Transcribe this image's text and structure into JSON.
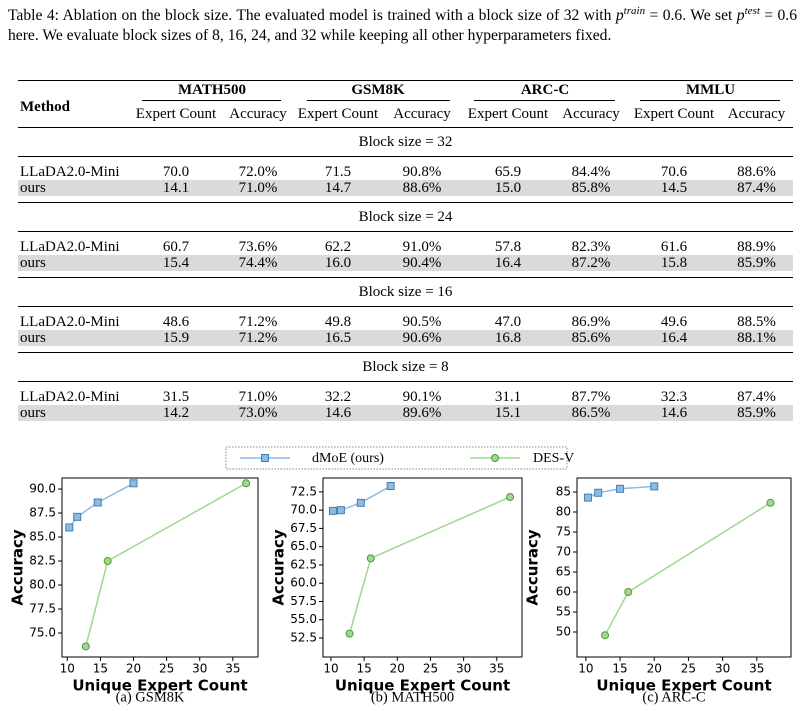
{
  "caption": [
    "Table 4: Ablation on the block size. The evaluated model is trained with a block size of 32 with",
    "p",
    "train",
    " = 0.6. We set ",
    "p",
    "test",
    " = 0.6 here. We evaluate block sizes of 8, 16, 24, and 32 while keeping all other hyperparameters fixed."
  ],
  "table": {
    "method_header": "Method",
    "groups": [
      "MATH500",
      "GSM8K",
      "ARC-C",
      "MMLU"
    ],
    "subheaders": [
      "Expert Count",
      "Accuracy"
    ],
    "sections": [
      {
        "title": "Block size = 32",
        "rows": [
          [
            "LLaDA2.0-Mini",
            "70.0",
            "72.0%",
            "71.5",
            "90.8%",
            "65.9",
            "84.4%",
            "70.6",
            "88.6%"
          ],
          [
            "ours",
            "14.1",
            "71.0%",
            "14.7",
            "88.6%",
            "15.0",
            "85.8%",
            "14.5",
            "87.4%"
          ]
        ]
      },
      {
        "title": "Block size = 24",
        "rows": [
          [
            "LLaDA2.0-Mini",
            "60.7",
            "73.6%",
            "62.2",
            "91.0%",
            "57.8",
            "82.3%",
            "61.6",
            "88.9%"
          ],
          [
            "ours",
            "15.4",
            "74.4%",
            "16.0",
            "90.4%",
            "16.4",
            "87.2%",
            "15.8",
            "85.9%"
          ]
        ]
      },
      {
        "title": "Block size = 16",
        "rows": [
          [
            "LLaDA2.0-Mini",
            "48.6",
            "71.2%",
            "49.8",
            "90.5%",
            "47.0",
            "86.9%",
            "49.6",
            "88.5%"
          ],
          [
            "ours",
            "15.9",
            "71.2%",
            "16.5",
            "90.6%",
            "16.8",
            "85.6%",
            "16.4",
            "88.1%"
          ]
        ]
      },
      {
        "title": "Block size = 8",
        "rows": [
          [
            "LLaDA2.0-Mini",
            "31.5",
            "71.0%",
            "32.2",
            "90.1%",
            "31.1",
            "87.7%",
            "32.3",
            "87.4%"
          ],
          [
            "ours",
            "14.2",
            "73.0%",
            "14.6",
            "89.6%",
            "15.1",
            "86.5%",
            "14.6",
            "85.9%"
          ]
        ]
      }
    ]
  },
  "chart_data": [
    {
      "type": "line",
      "subcaption": "(a) GSM8K",
      "xlabel": "Unique Expert Count",
      "ylabel": "Accuracy",
      "xlim": [
        9.2,
        38.8
      ],
      "xticks": [
        10,
        15,
        20,
        25,
        30,
        35
      ],
      "ylim": [
        72.5,
        91.15
      ],
      "yticks": [
        {
          "value": 75,
          "label": "75.0"
        },
        77.5,
        {
          "value": 80,
          "label": "80.0"
        },
        82.5,
        {
          "value": 85,
          "label": "85.0"
        },
        87.5,
        {
          "value": 90,
          "label": "90.0"
        }
      ],
      "series": [
        {
          "name": "dMoE (ours)",
          "color": "#8fbbe0",
          "marker": "square",
          "x": [
            10.3,
            11.5,
            14.6,
            20
          ],
          "values": [
            86.0,
            87.1,
            88.6,
            90.6
          ]
        },
        {
          "name": "DES-V",
          "color": "#9fd88f",
          "marker": "circle",
          "x": [
            12.8,
            16.1,
            37
          ],
          "values": [
            73.6,
            82.5,
            90.6
          ]
        }
      ]
    },
    {
      "type": "line",
      "subcaption": "(b) MATH500",
      "xlabel": "Unique Expert Count",
      "ylabel": "Accuracy",
      "xlim": [
        8.8,
        38.8
      ],
      "xticks": [
        10,
        15,
        20,
        25,
        30,
        35
      ],
      "ylim": [
        49.9,
        74.4
      ],
      "yticks": [
        52.5,
        {
          "value": 55,
          "label": "55.0"
        },
        57.5,
        {
          "value": 60,
          "label": "60.0"
        },
        62.5,
        {
          "value": 65,
          "label": "65.0"
        },
        67.5,
        {
          "value": 70,
          "label": "70.0"
        },
        72.5
      ],
      "series": [
        {
          "color": "#8fbbe0",
          "marker": "square",
          "x": [
            10.3,
            11.5,
            14.5,
            19
          ],
          "values": [
            69.9,
            70.0,
            71.0,
            73.3
          ]
        },
        {
          "color": "#9fd88f",
          "marker": "circle",
          "x": [
            12.8,
            16,
            37
          ],
          "values": [
            53.1,
            63.4,
            71.8
          ]
        }
      ]
    },
    {
      "type": "line",
      "subcaption": "(c) ARC-C",
      "xlabel": "Unique Expert Count",
      "ylabel": "Accuracy",
      "xlim": [
        8.7,
        40
      ],
      "xticks": [
        10,
        15,
        20,
        25,
        30,
        35
      ],
      "ylim": [
        43.75,
        88.5
      ],
      "yticks": [
        50,
        55,
        60,
        65,
        70,
        75,
        80,
        85
      ],
      "series": [
        {
          "color": "#8fbbe0",
          "marker": "square",
          "x": [
            10.3,
            11.8,
            15,
            20
          ],
          "values": [
            83.6,
            84.8,
            85.8,
            86.4
          ]
        },
        {
          "color": "#9fd88f",
          "marker": "circle",
          "x": [
            12.8,
            16.2,
            37
          ],
          "values": [
            49.2,
            60.0,
            82.3
          ]
        }
      ]
    }
  ]
}
